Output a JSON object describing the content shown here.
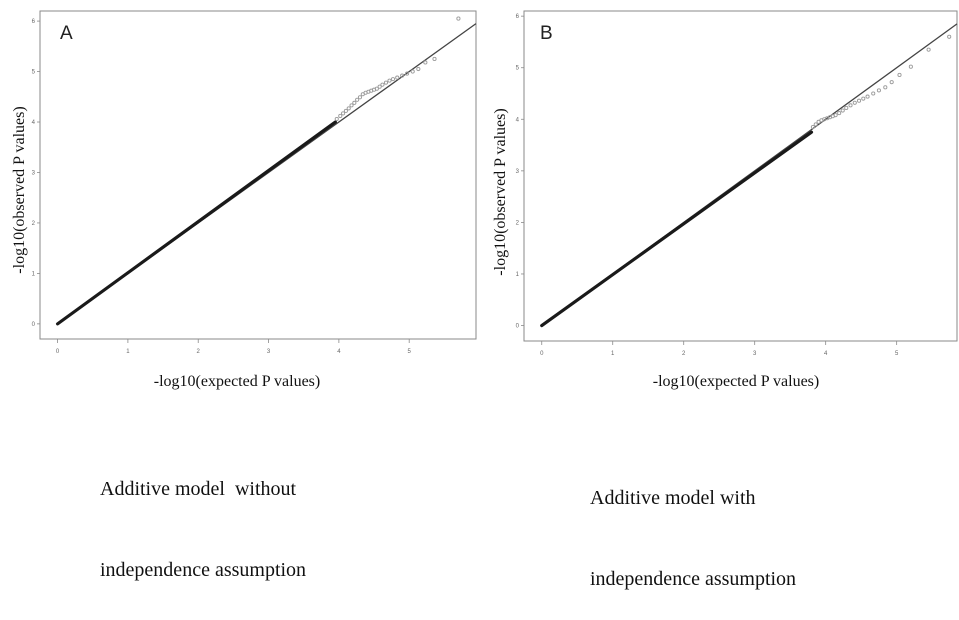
{
  "colors": {
    "frame": "#8a8a8a",
    "diagonal": "#444444",
    "data": "#1a1a1a",
    "outlier": "#9a9a9a"
  },
  "chart_data": [
    {
      "type": "scatter",
      "panel_label": "A",
      "title": "",
      "xlabel": "-log10(expected P values)",
      "ylabel": "-log10(observed P values)",
      "xlim": [
        -0.25,
        5.95
      ],
      "ylim": [
        -0.3,
        6.2
      ],
      "x_ticks": [
        "0",
        "1",
        "2",
        "3",
        "4",
        "5"
      ],
      "y_ticks": [
        "0",
        "1",
        "2",
        "3",
        "4",
        "5",
        "6"
      ],
      "reference_line": {
        "from": [
          0,
          0
        ],
        "to": [
          5.95,
          5.95
        ],
        "label": "y = x"
      },
      "dense_segment": {
        "from": [
          0,
          0
        ],
        "to": [
          3.95,
          4.0
        ]
      },
      "points": [
        [
          3.97,
          4.06
        ],
        [
          4.02,
          4.12
        ],
        [
          4.06,
          4.17
        ],
        [
          4.1,
          4.22
        ],
        [
          4.14,
          4.27
        ],
        [
          4.18,
          4.33
        ],
        [
          4.22,
          4.38
        ],
        [
          4.26,
          4.44
        ],
        [
          4.3,
          4.49
        ],
        [
          4.34,
          4.55
        ],
        [
          4.38,
          4.58
        ],
        [
          4.42,
          4.6
        ],
        [
          4.46,
          4.62
        ],
        [
          4.5,
          4.64
        ],
        [
          4.54,
          4.66
        ],
        [
          4.58,
          4.7
        ],
        [
          4.62,
          4.74
        ],
        [
          4.67,
          4.78
        ],
        [
          4.72,
          4.82
        ],
        [
          4.77,
          4.85
        ],
        [
          4.83,
          4.88
        ],
        [
          4.9,
          4.92
        ],
        [
          4.97,
          4.96
        ],
        [
          5.05,
          5.0
        ],
        [
          5.13,
          5.05
        ],
        [
          5.23,
          5.18
        ],
        [
          5.36,
          5.25
        ],
        [
          5.7,
          6.05
        ]
      ]
    },
    {
      "type": "scatter",
      "panel_label": "B",
      "title": "",
      "xlabel": "-log10(expected P values)",
      "ylabel": "-log10(observed P values)",
      "xlim": [
        -0.25,
        5.85
      ],
      "ylim": [
        -0.3,
        6.1
      ],
      "x_ticks": [
        "0",
        "1",
        "2",
        "3",
        "4",
        "5"
      ],
      "y_ticks": [
        "0",
        "1",
        "2",
        "3",
        "4",
        "5",
        "6"
      ],
      "reference_line": {
        "from": [
          0,
          0
        ],
        "to": [
          5.85,
          5.85
        ],
        "label": "y = x"
      },
      "dense_segment": {
        "from": [
          0,
          0
        ],
        "to": [
          3.8,
          3.75
        ]
      },
      "points": [
        [
          3.82,
          3.85
        ],
        [
          3.86,
          3.9
        ],
        [
          3.9,
          3.95
        ],
        [
          3.94,
          3.98
        ],
        [
          3.98,
          4.0
        ],
        [
          4.02,
          4.02
        ],
        [
          4.06,
          4.04
        ],
        [
          4.1,
          4.06
        ],
        [
          4.14,
          4.08
        ],
        [
          4.19,
          4.12
        ],
        [
          4.24,
          4.17
        ],
        [
          4.29,
          4.22
        ],
        [
          4.35,
          4.27
        ],
        [
          4.41,
          4.32
        ],
        [
          4.47,
          4.36
        ],
        [
          4.53,
          4.4
        ],
        [
          4.59,
          4.44
        ],
        [
          4.67,
          4.5
        ],
        [
          4.75,
          4.56
        ],
        [
          4.84,
          4.62
        ],
        [
          4.93,
          4.72
        ],
        [
          5.04,
          4.86
        ],
        [
          5.2,
          5.02
        ],
        [
          5.45,
          5.35
        ],
        [
          5.74,
          5.6
        ]
      ]
    }
  ],
  "captions": {
    "a": {
      "line1": "Additive model  without",
      "line2": "independence assumption"
    },
    "b": {
      "line1": "Additive model with",
      "line2": "independence assumption"
    }
  }
}
